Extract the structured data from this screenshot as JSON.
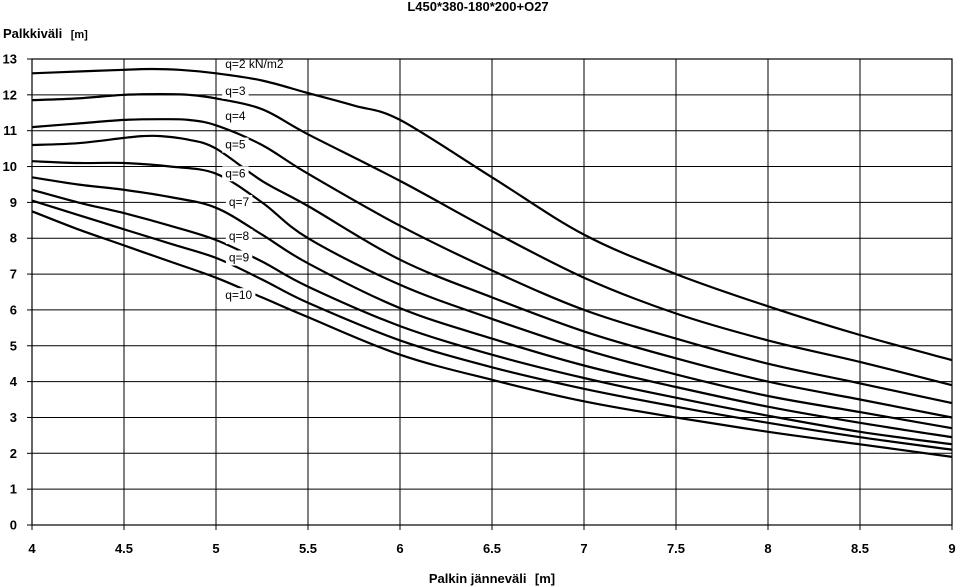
{
  "chart_data": {
    "type": "line",
    "title": "L450*380-180*200+O27",
    "ylabel": "Palkkiväli",
    "ylabel_unit": "[m]",
    "xlabel": "Palkin jänneväli",
    "xlabel_unit": "[m]",
    "xlim": [
      4,
      9
    ],
    "ylim": [
      0,
      13
    ],
    "x_ticks": [
      "4",
      "4.5",
      "5",
      "5.5",
      "6",
      "6.5",
      "7",
      "7.5",
      "8",
      "8.5",
      "9"
    ],
    "y_ticks": [
      "0",
      "1",
      "2",
      "3",
      "4",
      "5",
      "6",
      "7",
      "8",
      "9",
      "10",
      "11",
      "12",
      "13"
    ],
    "grid": true,
    "series": [
      {
        "name": "q=2 kN/m2",
        "label_x": 5.05,
        "label_y": 12.75,
        "x": [
          4,
          4.25,
          4.5,
          4.65,
          4.8,
          5,
          5.25,
          5.5,
          5.75,
          6,
          6.5,
          7,
          7.5,
          8,
          8.5,
          9
        ],
        "y": [
          12.6,
          12.65,
          12.7,
          12.72,
          12.7,
          12.6,
          12.4,
          12.05,
          11.7,
          11.3,
          9.7,
          8.1,
          7.0,
          6.1,
          5.3,
          4.6
        ]
      },
      {
        "name": "q=3",
        "label_x": 5.05,
        "label_y": 12.0,
        "x": [
          4,
          4.25,
          4.5,
          4.7,
          4.85,
          5,
          5.25,
          5.5,
          6,
          6.5,
          7,
          7.5,
          8,
          8.5,
          9
        ],
        "y": [
          11.85,
          11.9,
          12.0,
          12.02,
          12.0,
          11.9,
          11.6,
          10.9,
          9.6,
          8.2,
          6.9,
          5.9,
          5.15,
          4.55,
          3.9
        ]
      },
      {
        "name": "q=4",
        "label_x": 5.05,
        "label_y": 11.3,
        "x": [
          4,
          4.25,
          4.5,
          4.7,
          4.85,
          5,
          5.25,
          5.5,
          6,
          6.5,
          7,
          7.5,
          8,
          8.5,
          9
        ],
        "y": [
          11.1,
          11.2,
          11.3,
          11.32,
          11.3,
          11.15,
          10.6,
          9.8,
          8.35,
          7.1,
          6.0,
          5.2,
          4.5,
          3.95,
          3.4
        ]
      },
      {
        "name": "q=5",
        "label_x": 5.05,
        "label_y": 10.5,
        "x": [
          4,
          4.25,
          4.5,
          4.6,
          4.7,
          4.85,
          5,
          5.25,
          5.5,
          6,
          6.5,
          7,
          7.5,
          8,
          8.5,
          9
        ],
        "y": [
          10.6,
          10.65,
          10.8,
          10.85,
          10.85,
          10.75,
          10.5,
          9.6,
          8.9,
          7.4,
          6.35,
          5.4,
          4.65,
          4.0,
          3.5,
          3.0
        ]
      },
      {
        "name": "q=6",
        "label_x": 5.05,
        "label_y": 9.7,
        "x": [
          4,
          4.25,
          4.5,
          4.75,
          5,
          5.25,
          5.5,
          6,
          6.5,
          7,
          7.5,
          8,
          8.5,
          9
        ],
        "y": [
          10.15,
          10.1,
          10.1,
          10.0,
          9.8,
          9.0,
          8.0,
          6.7,
          5.75,
          4.9,
          4.2,
          3.6,
          3.15,
          2.7
        ]
      },
      {
        "name": "q=7",
        "label_x": 5.07,
        "label_y": 8.9,
        "x": [
          4,
          4.25,
          4.5,
          4.75,
          5,
          5.25,
          5.5,
          6,
          6.5,
          7,
          7.5,
          8,
          8.5,
          9
        ],
        "y": [
          9.7,
          9.5,
          9.35,
          9.15,
          8.85,
          8.1,
          7.3,
          6.05,
          5.2,
          4.45,
          3.85,
          3.3,
          2.85,
          2.45
        ]
      },
      {
        "name": "q=8",
        "label_x": 5.07,
        "label_y": 7.95,
        "x": [
          4,
          4.25,
          4.5,
          4.75,
          5,
          5.25,
          5.5,
          6,
          6.5,
          7,
          7.5,
          8,
          8.5,
          9
        ],
        "y": [
          9.35,
          9.0,
          8.7,
          8.35,
          7.95,
          7.35,
          6.65,
          5.55,
          4.75,
          4.1,
          3.55,
          3.05,
          2.6,
          2.25
        ]
      },
      {
        "name": "q=9",
        "label_x": 5.07,
        "label_y": 7.35,
        "x": [
          4,
          4.25,
          4.5,
          4.75,
          5,
          5.25,
          5.5,
          6,
          6.5,
          7,
          7.5,
          8,
          8.5,
          9
        ],
        "y": [
          9.05,
          8.65,
          8.25,
          7.85,
          7.45,
          6.85,
          6.2,
          5.15,
          4.4,
          3.8,
          3.3,
          2.85,
          2.45,
          2.1
        ]
      },
      {
        "name": "q=10",
        "label_x": 5.05,
        "label_y": 6.3,
        "x": [
          4,
          4.25,
          4.5,
          4.75,
          5,
          5.25,
          5.5,
          6,
          6.5,
          7,
          7.5,
          8,
          8.5,
          9
        ],
        "y": [
          8.75,
          8.25,
          7.8,
          7.35,
          6.9,
          6.35,
          5.8,
          4.75,
          4.05,
          3.45,
          3.0,
          2.6,
          2.25,
          1.9
        ]
      }
    ]
  }
}
